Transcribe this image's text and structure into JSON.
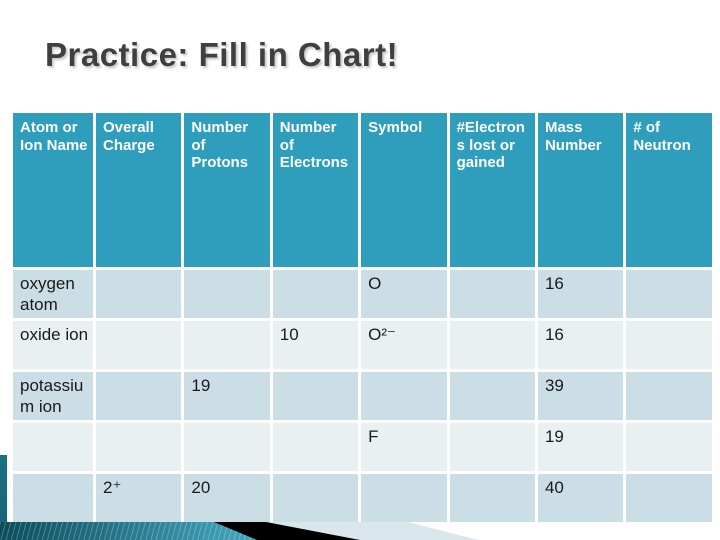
{
  "slide": {
    "title": "Practice: Fill in Chart!"
  },
  "table": {
    "headers": [
      "Atom or Ion Name",
      "Overall Charge",
      "Number of Protons",
      "Number of Electrons",
      "Symbol",
      "#Electrons lost or gained",
      "Mass Number",
      "# of Neutron"
    ],
    "rows": [
      {
        "cells": [
          "oxygen atom",
          "",
          "",
          "",
          "O",
          "",
          "16",
          ""
        ]
      },
      {
        "cells": [
          "oxide ion",
          "",
          "",
          "10",
          "O²⁻",
          "",
          "16",
          ""
        ]
      },
      {
        "cells": [
          "potassium ion",
          "",
          "19",
          "",
          "",
          "",
          "39",
          ""
        ]
      },
      {
        "cells": [
          "",
          "",
          "",
          "",
          "F",
          "",
          "19",
          ""
        ]
      },
      {
        "cells": [
          "",
          "2⁺",
          "20",
          "",
          "",
          "",
          "40",
          ""
        ]
      }
    ]
  },
  "colors": {
    "header_bg": "#2E9EBC",
    "row_odd": "#CBDEE6",
    "row_even": "#E9F0F2",
    "title_color": "#3F3F3F",
    "cell_text": "#1A1A1A",
    "accent_dark": "#186376",
    "band_teal_dark": "#0C4C5A",
    "band_teal_light": "#45A9C2",
    "arrow_black": "#000000",
    "arrow_pale": "#D9E6EB"
  }
}
